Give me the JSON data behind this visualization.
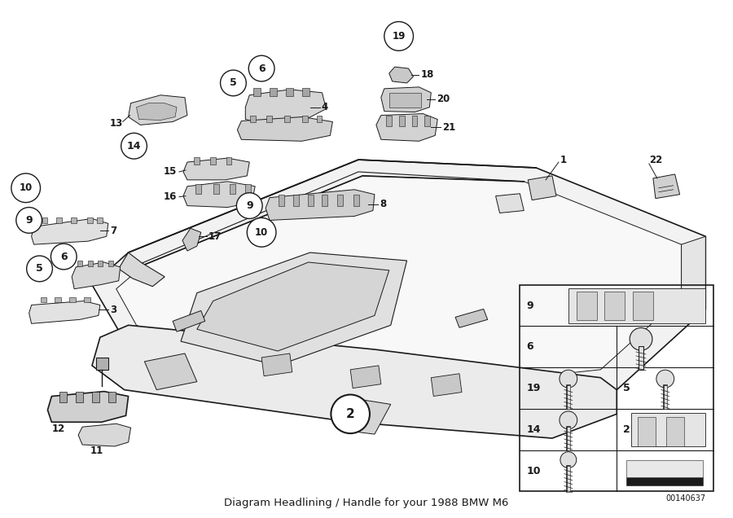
{
  "title": "Diagram Headlining / Handle for your 1988 BMW M6",
  "bg_color": "#ffffff",
  "line_color": "#1a1a1a",
  "diagram_code": "00140637",
  "label_fontsize": 8.5,
  "circle_fontsize": 9,
  "title_fontsize": 9.5
}
